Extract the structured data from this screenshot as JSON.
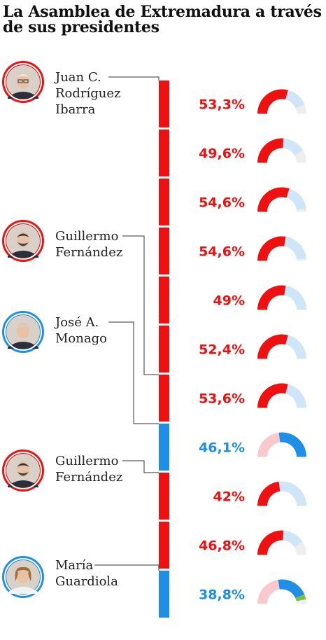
{
  "title": "La Asamblea de Extremadura a través de sus presidentes",
  "colors": {
    "psoe": "#ee1111",
    "pp": "#1e8ee6",
    "psoe_light": "#f9c9cc",
    "pp_light": "#cfe6f8",
    "other": "#eeeeee",
    "green": "#7bc043",
    "line": "#333333"
  },
  "presidents": [
    {
      "name_lines": [
        "Juan C.",
        "Rodríguez",
        "Ibarra"
      ],
      "party": "psoe",
      "first_term": 0,
      "photo_icon": "portrait-man-glasses"
    },
    {
      "name_lines": [
        "Guillermo",
        "Fernández"
      ],
      "party": "psoe",
      "first_term": 6,
      "photo_icon": "portrait-man-beard"
    },
    {
      "name_lines": [
        "José A.",
        "Monago"
      ],
      "party": "pp",
      "first_term": 7,
      "photo_icon": "portrait-man-suit"
    },
    {
      "name_lines": [
        "Guillermo",
        "Fernández"
      ],
      "party": "psoe",
      "first_term": 8,
      "photo_icon": "portrait-man-beard"
    },
    {
      "name_lines": [
        "María",
        "Guardiola"
      ],
      "party": "pp",
      "first_term": 10,
      "photo_icon": "portrait-woman"
    }
  ],
  "chart_data": {
    "type": "bar",
    "terms": [
      {
        "label": "53,3%",
        "value": 53.3,
        "party": "psoe",
        "seats_share": {
          "psoe": 0.58,
          "pp": 0.3,
          "other": 0.12,
          "green": 0
        }
      },
      {
        "label": "49,6%",
        "value": 49.6,
        "party": "psoe",
        "seats_share": {
          "psoe": 0.52,
          "pp": 0.31,
          "other": 0.17,
          "green": 0
        }
      },
      {
        "label": "54,6%",
        "value": 54.6,
        "party": "psoe",
        "seats_share": {
          "psoe": 0.6,
          "pp": 0.36,
          "other": 0.04,
          "green": 0
        }
      },
      {
        "label": "54,6%",
        "value": 54.6,
        "party": "psoe",
        "seats_share": {
          "psoe": 0.55,
          "pp": 0.42,
          "other": 0.03,
          "green": 0
        }
      },
      {
        "label": "49%",
        "value": 49.0,
        "party": "psoe",
        "seats_share": {
          "psoe": 0.55,
          "pp": 0.45,
          "other": 0.0,
          "green": 0
        }
      },
      {
        "label": "52,4%",
        "value": 52.4,
        "party": "psoe",
        "seats_share": {
          "psoe": 0.58,
          "pp": 0.42,
          "other": 0.0,
          "green": 0
        }
      },
      {
        "label": "53,6%",
        "value": 53.6,
        "party": "psoe",
        "seats_share": {
          "psoe": 0.58,
          "pp": 0.42,
          "other": 0.0,
          "green": 0
        }
      },
      {
        "label": "46,1%",
        "value": 46.1,
        "party": "pp",
        "seats_share": {
          "psoe": 0.46,
          "pp": 0.54,
          "other": 0.0,
          "green": 0
        }
      },
      {
        "label": "42%",
        "value": 42.0,
        "party": "psoe",
        "seats_share": {
          "psoe": 0.46,
          "pp": 0.54,
          "other": 0.0,
          "green": 0
        }
      },
      {
        "label": "46,8%",
        "value": 46.8,
        "party": "psoe",
        "seats_share": {
          "psoe": 0.52,
          "pp": 0.3,
          "other": 0.18,
          "green": 0
        }
      },
      {
        "label": "38,8%",
        "value": 38.8,
        "party": "pp",
        "seats_share": {
          "psoe": 0.45,
          "pp": 0.42,
          "other": 0.06,
          "green": 0.07
        }
      }
    ]
  }
}
